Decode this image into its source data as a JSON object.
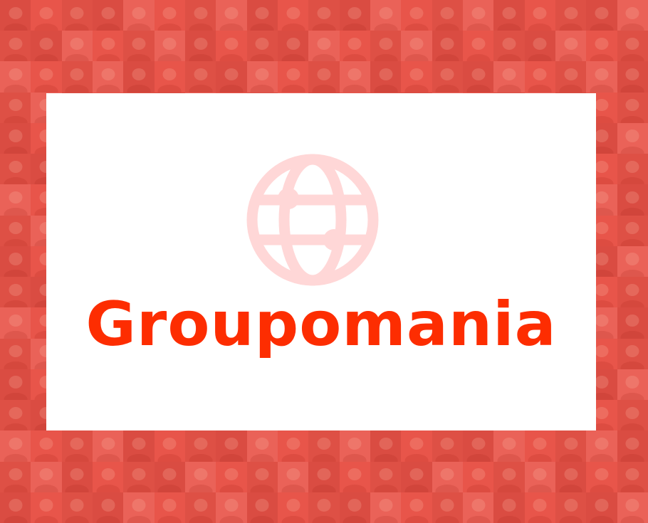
{
  "brand": {
    "name": "Groupomania",
    "logo_icon": "globe-icon",
    "color": "#fd2d01",
    "icon_color": "#ffd7d7"
  },
  "background": {
    "color": "#e8554a",
    "pattern": "mosaic-of-portrait-photos"
  }
}
